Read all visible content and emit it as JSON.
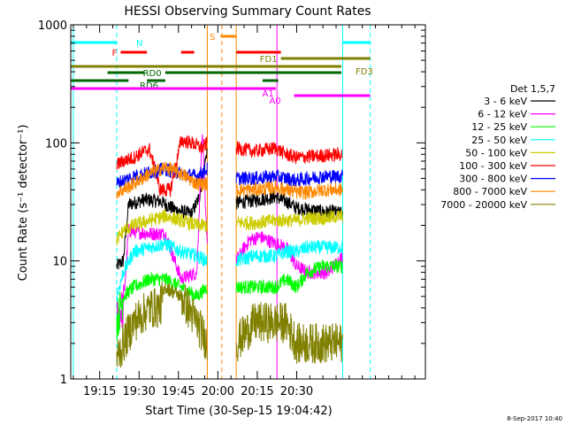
{
  "chart_data": {
    "type": "line",
    "title": "HESSI Observing Summary Count Rates",
    "xlabel": "Start Time (30-Sep-15 19:04:42)",
    "ylabel": "Count Rate (s⁻¹ detector⁻¹)",
    "ylog": true,
    "ylim": [
      1,
      1000
    ],
    "xlim_min": [
      0,
      135
    ],
    "x_ticks": [
      {
        "m": 11,
        "label": "19:15"
      },
      {
        "m": 26,
        "label": "19:30"
      },
      {
        "m": 41,
        "label": "19:45"
      },
      {
        "m": 56,
        "label": "20:00"
      },
      {
        "m": 71,
        "label": "20:15"
      },
      {
        "m": 86,
        "label": "20:30"
      }
    ],
    "y_ticks": [
      {
        "v": 1,
        "label": "1"
      },
      {
        "v": 10,
        "label": "10"
      },
      {
        "v": 100,
        "label": "100"
      },
      {
        "v": 1000,
        "label": "1000"
      }
    ],
    "legend_title": "Det 1,5,7",
    "legend_placement": "right",
    "segments": [
      [
        17.5,
        52
      ],
      [
        63,
        103.5
      ]
    ],
    "series": [
      {
        "name": "3 - 6 keV",
        "color": "#000000",
        "points": [
          [
            17.5,
            9
          ],
          [
            20,
            10
          ],
          [
            22,
            30
          ],
          [
            28,
            33
          ],
          [
            34,
            32
          ],
          [
            40,
            27
          ],
          [
            46,
            25
          ],
          [
            49,
            35
          ],
          [
            52,
            90
          ],
          [
            63,
            31
          ],
          [
            72,
            33
          ],
          [
            78,
            35
          ],
          [
            80,
            33
          ],
          [
            82,
            32
          ],
          [
            84,
            30
          ],
          [
            86,
            28
          ],
          [
            92,
            27
          ],
          [
            96,
            26
          ],
          [
            100,
            26
          ],
          [
            103.5,
            25
          ]
        ]
      },
      {
        "name": "6 - 12 keV",
        "color": "#ff00ff",
        "points": [
          [
            17.5,
            3.5
          ],
          [
            20,
            4
          ],
          [
            22,
            18
          ],
          [
            30,
            17
          ],
          [
            36,
            17
          ],
          [
            42,
            7
          ],
          [
            48,
            8
          ],
          [
            50,
            120
          ],
          [
            52,
            14
          ],
          [
            63,
            10
          ],
          [
            68,
            15
          ],
          [
            72,
            16
          ],
          [
            78,
            14
          ],
          [
            82,
            13
          ],
          [
            86,
            9
          ],
          [
            90,
            8
          ],
          [
            94,
            8
          ],
          [
            98,
            8
          ],
          [
            103.5,
            11
          ]
        ]
      },
      {
        "name": "12 - 25 keV",
        "color": "#00ff00",
        "points": [
          [
            17.5,
            3
          ],
          [
            20,
            5
          ],
          [
            24,
            6
          ],
          [
            30,
            7
          ],
          [
            36,
            7
          ],
          [
            42,
            6
          ],
          [
            48,
            5
          ],
          [
            52,
            6
          ],
          [
            63,
            6
          ],
          [
            70,
            6
          ],
          [
            78,
            6
          ],
          [
            82,
            7
          ],
          [
            86,
            6
          ],
          [
            90,
            8
          ],
          [
            96,
            9
          ],
          [
            103.5,
            9
          ]
        ]
      },
      {
        "name": "25 - 50 keV",
        "color": "#00ffff",
        "points": [
          [
            17.5,
            5
          ],
          [
            20,
            8
          ],
          [
            24,
            12
          ],
          [
            30,
            13
          ],
          [
            36,
            14
          ],
          [
            42,
            12
          ],
          [
            48,
            11
          ],
          [
            52,
            10
          ],
          [
            63,
            10
          ],
          [
            70,
            11
          ],
          [
            78,
            11
          ],
          [
            82,
            12
          ],
          [
            86,
            12
          ],
          [
            90,
            13
          ],
          [
            96,
            13
          ],
          [
            103.5,
            13
          ]
        ]
      },
      {
        "name": "50 - 100 keV",
        "color": "#cccc00",
        "points": [
          [
            17.5,
            15
          ],
          [
            20,
            18
          ],
          [
            24,
            20
          ],
          [
            30,
            22
          ],
          [
            36,
            24
          ],
          [
            42,
            22
          ],
          [
            48,
            20
          ],
          [
            52,
            20
          ],
          [
            63,
            21
          ],
          [
            70,
            21
          ],
          [
            78,
            22
          ],
          [
            82,
            22
          ],
          [
            86,
            22
          ],
          [
            90,
            23
          ],
          [
            96,
            23
          ],
          [
            103.5,
            24
          ]
        ]
      },
      {
        "name": "100 - 300 keV",
        "color": "#ff0000",
        "points": [
          [
            17.5,
            65
          ],
          [
            20,
            70
          ],
          [
            24,
            75
          ],
          [
            28,
            85
          ],
          [
            30,
            88
          ],
          [
            34,
            40
          ],
          [
            38,
            40
          ],
          [
            42,
            105
          ],
          [
            46,
            100
          ],
          [
            50,
            90
          ],
          [
            52,
            100
          ],
          [
            63,
            90
          ],
          [
            70,
            85
          ],
          [
            78,
            90
          ],
          [
            82,
            80
          ],
          [
            86,
            75
          ],
          [
            90,
            76
          ],
          [
            96,
            78
          ],
          [
            103.5,
            80
          ]
        ]
      },
      {
        "name": "300 - 800 keV",
        "color": "#0000ff",
        "points": [
          [
            17.5,
            45
          ],
          [
            20,
            48
          ],
          [
            24,
            52
          ],
          [
            30,
            56
          ],
          [
            36,
            60
          ],
          [
            42,
            55
          ],
          [
            48,
            52
          ],
          [
            52,
            60
          ],
          [
            63,
            50
          ],
          [
            70,
            50
          ],
          [
            78,
            52
          ],
          [
            82,
            50
          ],
          [
            86,
            48
          ],
          [
            90,
            50
          ],
          [
            96,
            52
          ],
          [
            103.5,
            52
          ]
        ]
      },
      {
        "name": "800 - 7000 keV",
        "color": "#ff8800",
        "points": [
          [
            17.5,
            38
          ],
          [
            20,
            40
          ],
          [
            24,
            45
          ],
          [
            30,
            55
          ],
          [
            36,
            62
          ],
          [
            42,
            55
          ],
          [
            48,
            45
          ],
          [
            52,
            45
          ],
          [
            63,
            40
          ],
          [
            70,
            40
          ],
          [
            78,
            42
          ],
          [
            82,
            40
          ],
          [
            86,
            38
          ],
          [
            90,
            38
          ],
          [
            96,
            40
          ],
          [
            103.5,
            40
          ]
        ]
      },
      {
        "name": "7000 - 20000 keV",
        "color": "#808000",
        "points": [
          [
            17.5,
            1.5
          ],
          [
            20,
            2
          ],
          [
            24,
            3
          ],
          [
            30,
            4
          ],
          [
            34,
            4
          ],
          [
            36,
            6
          ],
          [
            42,
            5
          ],
          [
            48,
            3
          ],
          [
            52,
            2
          ],
          [
            63,
            2
          ],
          [
            70,
            3
          ],
          [
            78,
            3
          ],
          [
            82,
            3
          ],
          [
            86,
            2
          ],
          [
            90,
            2
          ],
          [
            96,
            2
          ],
          [
            103.5,
            2
          ]
        ]
      }
    ],
    "flag_bars": [
      {
        "label": "N",
        "color": "#00ffff",
        "y": 48,
        "spans": [
          [
            0,
            17.5
          ],
          [
            103.5,
            114
          ]
        ]
      },
      {
        "label": "F",
        "color": "#ff0000",
        "y": 59,
        "spans": [
          [
            19,
            29
          ],
          [
            42,
            47
          ],
          [
            63,
            80
          ]
        ]
      },
      {
        "label": "S",
        "color": "#ff8800",
        "y": 41,
        "spans": [
          [
            57,
            63
          ]
        ]
      },
      {
        "label": "FD1",
        "color": "#808000",
        "y": 66,
        "spans": [
          [
            80,
            114
          ]
        ]
      },
      {
        "label": "FD3",
        "color": "#808000",
        "y": 75,
        "spans": [
          [
            0,
            103
          ]
        ]
      },
      {
        "label": "RD0",
        "color": "#006600",
        "y": 82,
        "spans": [
          [
            14,
            28
          ],
          [
            36,
            103
          ]
        ]
      },
      {
        "label": "RD6",
        "color": "#006600",
        "y": 91,
        "spans": [
          [
            0,
            22
          ],
          [
            29,
            36
          ],
          [
            73,
            79
          ]
        ]
      },
      {
        "label": "A1",
        "color": "#ff00ff",
        "y": 100,
        "spans": [
          [
            0,
            78
          ]
        ]
      },
      {
        "label": "A0",
        "color": "#ff00ff",
        "y": 108,
        "spans": [
          [
            85,
            114
          ]
        ]
      }
    ],
    "vlines": [
      {
        "m": 1,
        "color": "#00ffff",
        "dashed": false
      },
      {
        "m": 17.5,
        "color": "#00ffff",
        "dashed": true
      },
      {
        "m": 52,
        "color": "#ff8800",
        "dashed": false
      },
      {
        "m": 57.5,
        "color": "#ff8800",
        "dashed": true
      },
      {
        "m": 63,
        "color": "#ff8800",
        "dashed": false
      },
      {
        "m": 78.5,
        "color": "#ff00ff",
        "dashed": false
      },
      {
        "m": 103.5,
        "color": "#00ffff",
        "dashed": false
      },
      {
        "m": 114,
        "color": "#00ffff",
        "dashed": true
      }
    ],
    "footer_date": "8-Sep-2017 10:40"
  }
}
